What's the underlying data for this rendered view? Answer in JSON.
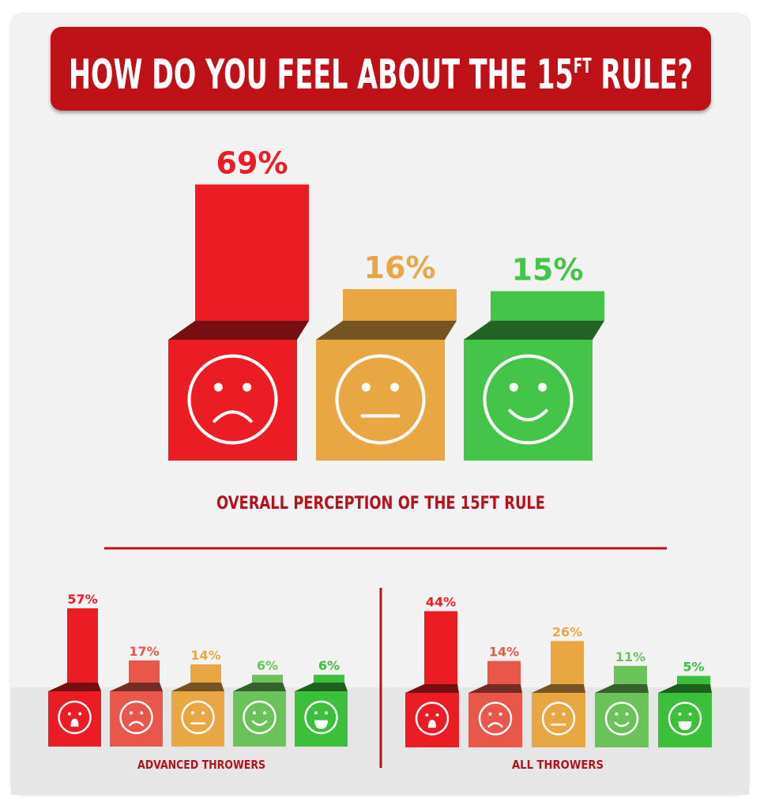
{
  "title": {
    "main": "HOW DO YOU FEEL ABOUT THE 15",
    "superscript": "FT",
    "end": " RULE?"
  },
  "colors": {
    "banner": "#bf1118",
    "very_unhappy": "#ec1c24",
    "unhappy": "#e8574a",
    "neutral": "#e9a744",
    "happy": "#6bc25a",
    "very_happy": "#3cc03c",
    "accent_text": "#b5121b"
  },
  "chart_data": [
    {
      "type": "bar",
      "id": "overall",
      "title": "OVERALL PERCEPTION OF THE 15FT RULE",
      "categories": [
        "sad-face-icon",
        "neutral-face-icon",
        "happy-face-icon"
      ],
      "values": [
        69,
        16,
        15
      ],
      "labels": [
        "69%",
        "16%",
        "15%"
      ],
      "colors": [
        "#ec1c24",
        "#e9a744",
        "#45c44a"
      ]
    },
    {
      "type": "bar",
      "id": "advanced",
      "title": "ADVANCED THROWERS",
      "categories": [
        "very-sad-face-icon",
        "sad-face-icon",
        "neutral-face-icon",
        "smile-face-icon",
        "grin-face-icon"
      ],
      "values": [
        57,
        17,
        14,
        6,
        6
      ],
      "labels": [
        "57%",
        "17%",
        "14%",
        "6%",
        "6%"
      ],
      "colors": [
        "#ec1c24",
        "#e8574a",
        "#e9a744",
        "#6bc25a",
        "#3cc03c"
      ]
    },
    {
      "type": "bar",
      "id": "all",
      "title": "ALL THROWERS",
      "categories": [
        "very-sad-face-icon",
        "sad-face-icon",
        "neutral-face-icon",
        "smile-face-icon",
        "grin-face-icon"
      ],
      "values": [
        44,
        14,
        26,
        11,
        5
      ],
      "labels": [
        "44%",
        "14%",
        "26%",
        "11%",
        "5%"
      ],
      "colors": [
        "#ec1c24",
        "#e8574a",
        "#e9a744",
        "#6bc25a",
        "#3cc03c"
      ]
    }
  ]
}
